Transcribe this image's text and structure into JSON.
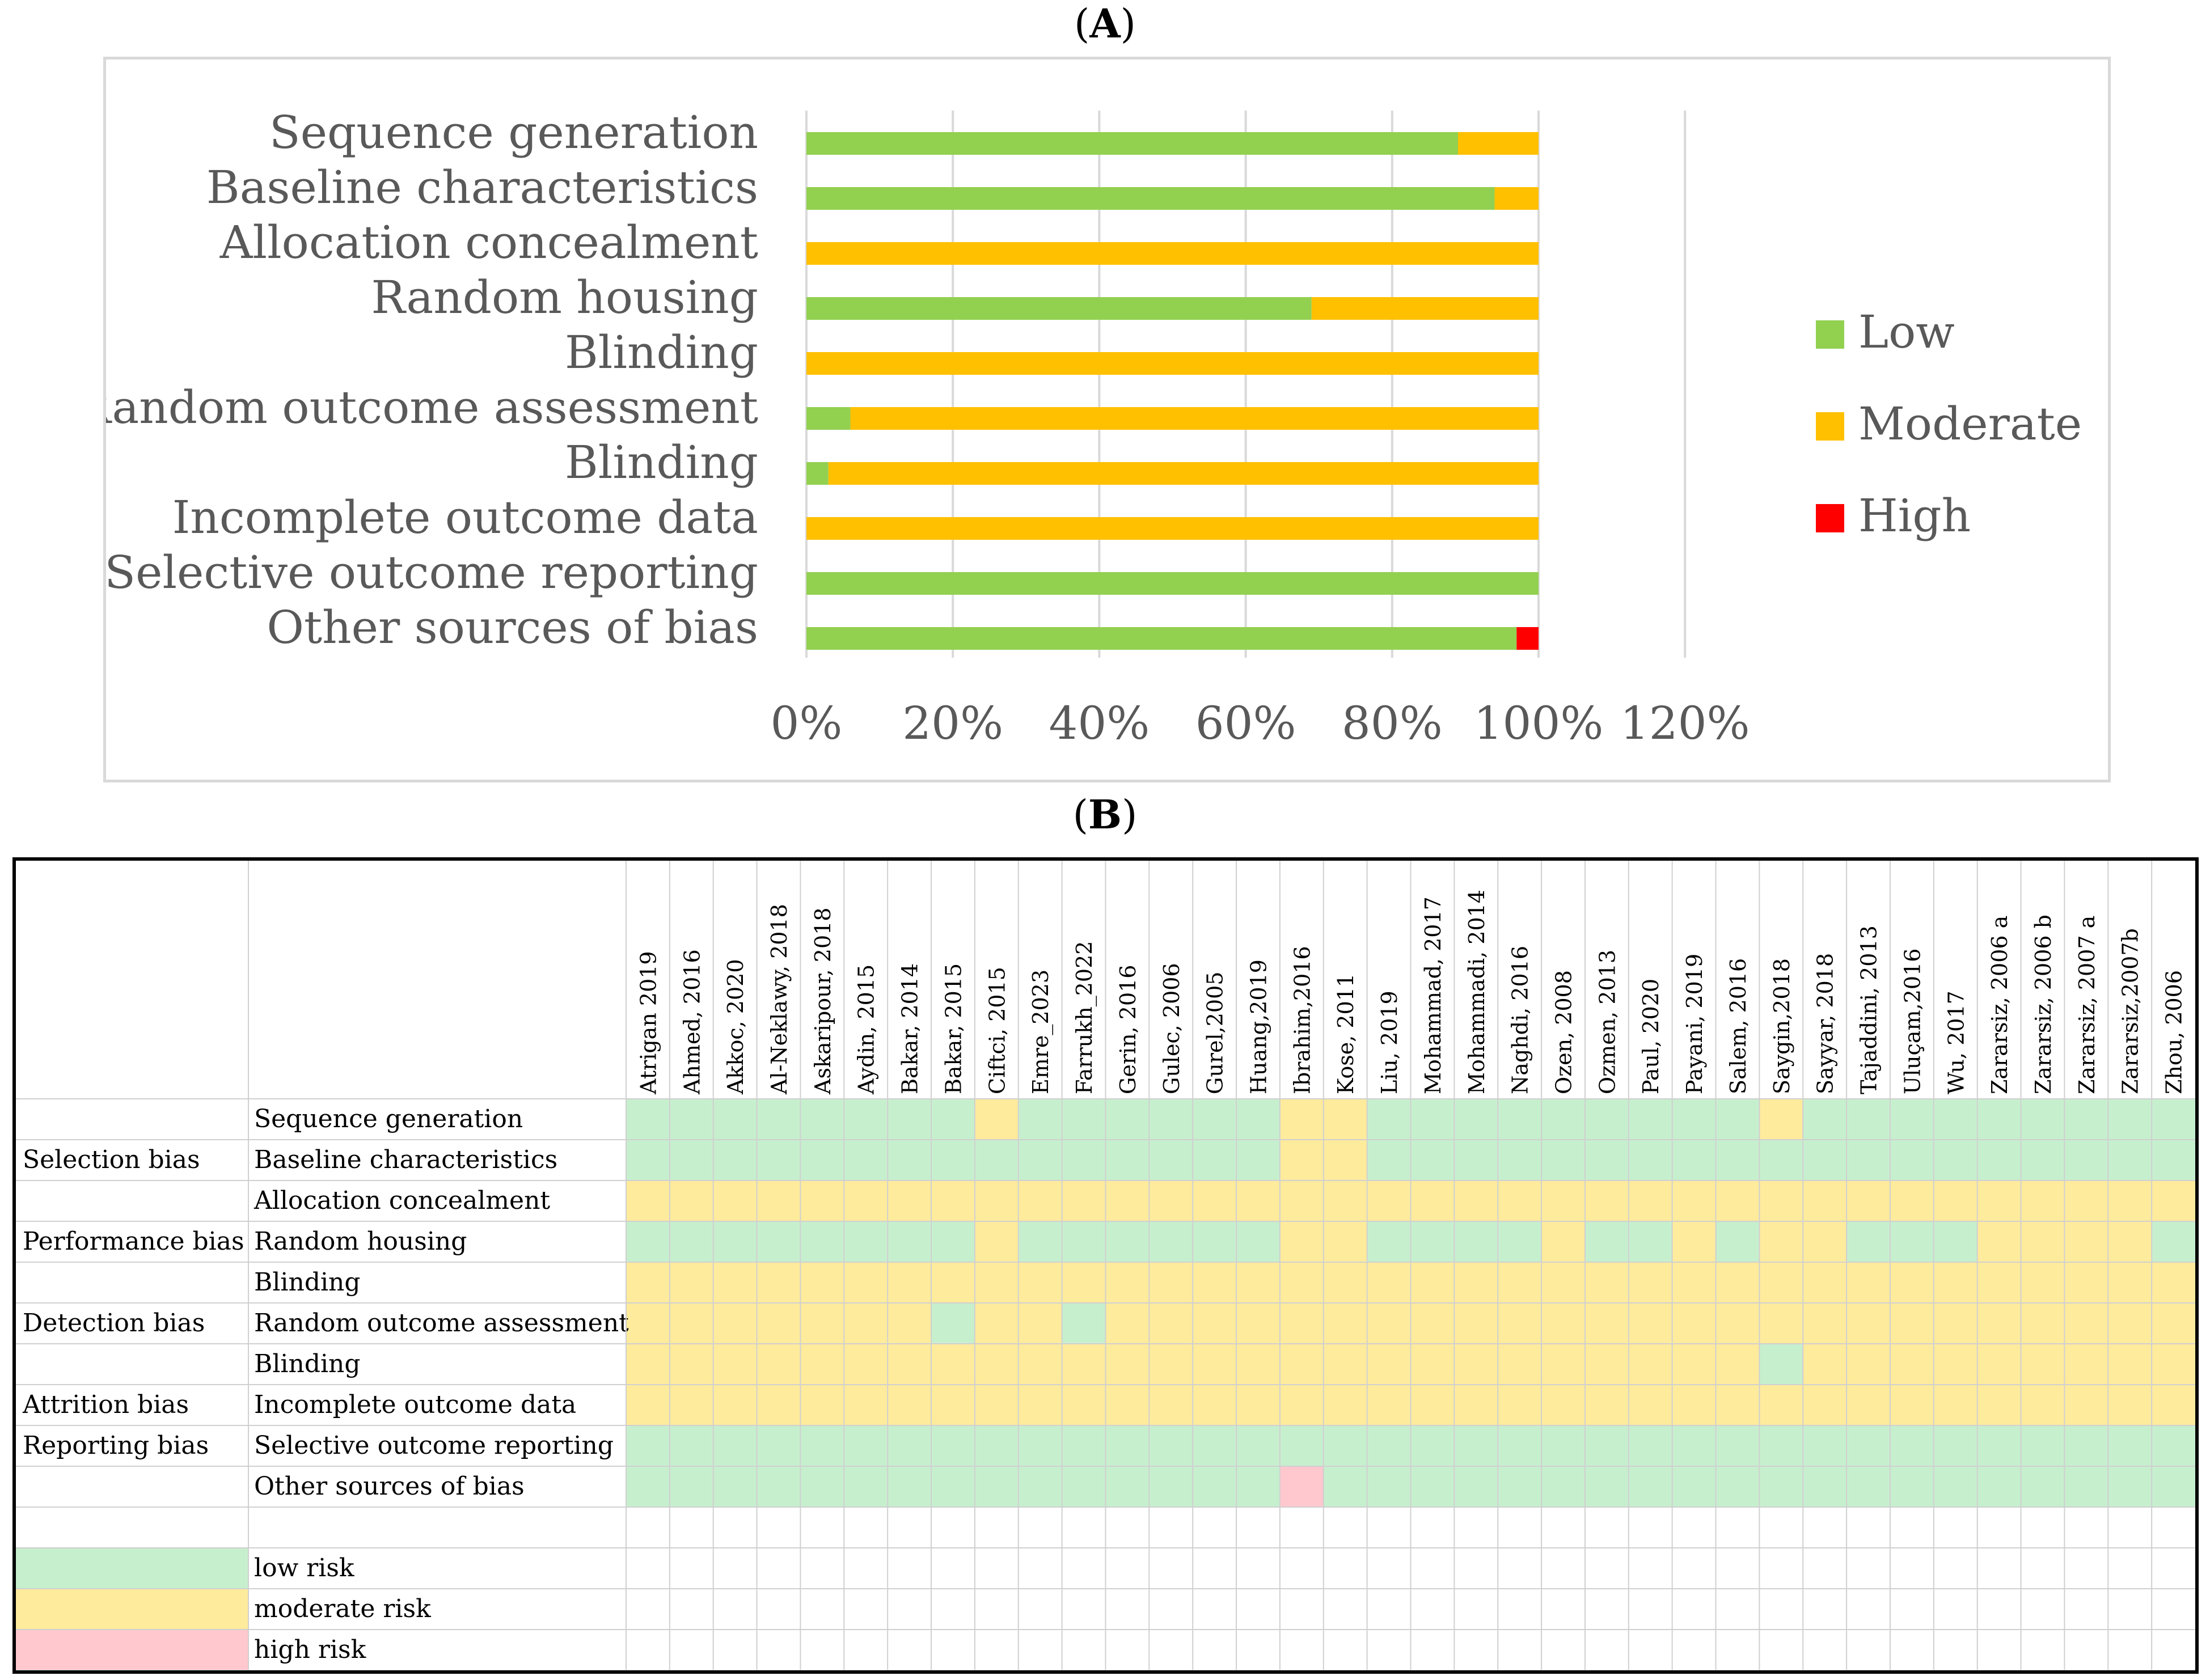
{
  "panel_labels": {
    "a": "(A)",
    "b": "(B)"
  },
  "colors": {
    "low": "#92d050",
    "moderate": "#ffc000",
    "high": "#ff0000",
    "low_cell": "#c6efce",
    "moderate_cell": "#ffeb9c",
    "high_cell": "#ffc7ce"
  },
  "chart_data": [
    {
      "type": "bar",
      "orientation": "horizontal",
      "stacked": true,
      "categories": [
        "Sequence generation",
        "Baseline characteristics",
        "Allocation concealment",
        "Random housing",
        "Blinding",
        "Random outcome assessment",
        "Blinding",
        "Incomplete outcome data",
        "Selective outcome reporting",
        "Other sources of bias"
      ],
      "series": [
        {
          "name": "Low",
          "color": "#92d050",
          "values": [
            0.89,
            0.94,
            0.0,
            0.69,
            0.0,
            0.06,
            0.03,
            0.0,
            1.0,
            0.97
          ]
        },
        {
          "name": "Moderate",
          "color": "#ffc000",
          "values": [
            0.11,
            0.06,
            1.0,
            0.31,
            1.0,
            0.94,
            0.97,
            1.0,
            0.0,
            0.0
          ]
        },
        {
          "name": "High",
          "color": "#ff0000",
          "values": [
            0.0,
            0.0,
            0.0,
            0.0,
            0.0,
            0.0,
            0.0,
            0.0,
            0.0,
            0.03
          ]
        }
      ],
      "xlim": [
        0,
        1.2
      ],
      "xticks": [
        "0%",
        "20%",
        "40%",
        "60%",
        "80%",
        "100%",
        "120%"
      ],
      "grid": true,
      "legend": "right"
    },
    {
      "type": "table",
      "studies": [
        "Atrigan 2019",
        "Ahmed, 2016",
        "Akkoc, 2020",
        "Al-Neklawy, 2018",
        "Askaripour, 2018",
        "Aydin, 2015",
        "Bakar, 2014",
        "Bakar, 2015",
        "Ciftci, 2015",
        "Emre_2023",
        "Farrukh_2022",
        "Gerin, 2016",
        "Gulec, 2006",
        "Gurel,2005",
        "Huang,2019",
        "Ibrahim,2016",
        "Kose, 2011",
        "Liu, 2019",
        "Mohammad, 2017",
        "Mohammadi, 2014",
        "Naghdi, 2016",
        "Ozen, 2008",
        "Ozmen, 2013",
        "Paul, 2020",
        "Payani, 2019",
        "Salem, 2016",
        "Saygin,2018",
        "Sayyar, 2018",
        "Tajaddini, 2013",
        "Uluçam,2016",
        "Wu, 2017",
        "Zararsiz, 2006 a",
        "Zararsiz, 2006 b",
        "Zararsiz, 2007 a",
        "Zararsiz,2007b",
        "Zhou, 2006"
      ],
      "rows": [
        {
          "group": "",
          "domain": "Sequence generation",
          "cells": "LLLLLLLLMLLLLLLMMLLLLLLLLLMLLLLLLLLL"
        },
        {
          "group": "Selection bias",
          "domain": "Baseline characteristics",
          "cells": "LLLLLLLLLLLLLLLMMLLLLLLLLLLLLLLLLLLL"
        },
        {
          "group": "",
          "domain": "Allocation concealment",
          "cells": "MMMMMMMMMMMMMMMMMMMMMMMMMMMMMMMMMMMM"
        },
        {
          "group": "Performance bias",
          "domain": "Random housing",
          "cells": "LLLLLLLLMLLLLLLMMLLLLMLLMLMMLLLMMMML"
        },
        {
          "group": "",
          "domain": "Blinding",
          "cells": "MMMMMMMMMMMMMMMMMMMMMMMMMMMMMMMMMMMM"
        },
        {
          "group": "Detection bias",
          "domain": "Random outcome assessment",
          "cells": "MMMMMMMLMMLMMMMMMMMMMMMMMMMMMMMMMMMM"
        },
        {
          "group": "",
          "domain": "Blinding",
          "cells": "MMMMMMMMMMMMMMMMMMMMMMMMMMLMMMMMMMMM"
        },
        {
          "group": "Attrition bias",
          "domain": "Incomplete outcome data",
          "cells": "MMMMMMMMMMMMMMMMMMMMMMMMMMMMMMMMMMMM"
        },
        {
          "group": "Reporting bias",
          "domain": "Selective outcome reporting",
          "cells": "LLLLLLLLLLLLLLLLLLLLLLLLLLLLLLLLLLLL"
        },
        {
          "group": "",
          "domain": "Other sources of bias",
          "cells": "LLLLLLLLLLLLLLLHLLLLLLLLLLLLLLLLLLLL"
        }
      ],
      "legend": [
        {
          "level": "L",
          "label": "low risk"
        },
        {
          "level": "M",
          "label": "moderate risk"
        },
        {
          "level": "H",
          "label": "high risk"
        }
      ]
    }
  ]
}
